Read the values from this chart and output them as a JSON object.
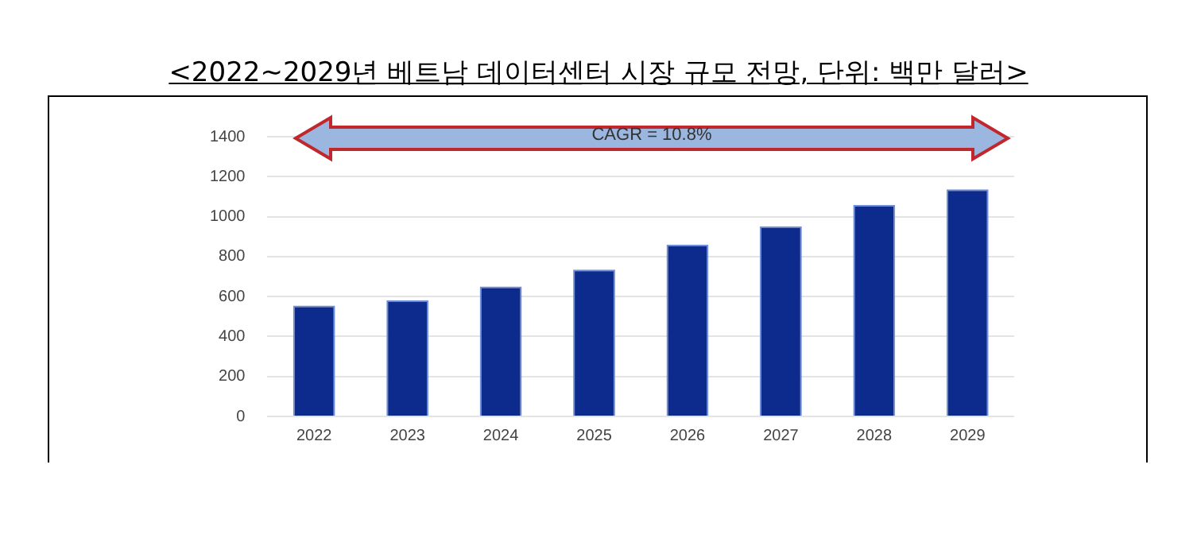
{
  "chart_data": {
    "type": "bar",
    "title": "<2022~2029년 베트남 데이터센터 시장 규모 전망, 단위: 백만 달러>",
    "categories": [
      "2022",
      "2023",
      "2024",
      "2025",
      "2026",
      "2027",
      "2028",
      "2029"
    ],
    "values": [
      555,
      582,
      650,
      735,
      860,
      952,
      1059,
      1137
    ],
    "color": "#0d2b8c",
    "ylim": [
      0,
      1400
    ],
    "yticks": [
      0,
      200,
      400,
      600,
      800,
      1000,
      1200,
      1400
    ],
    "grid": "y",
    "annotations": [
      "CAGR = 10.8%"
    ]
  }
}
